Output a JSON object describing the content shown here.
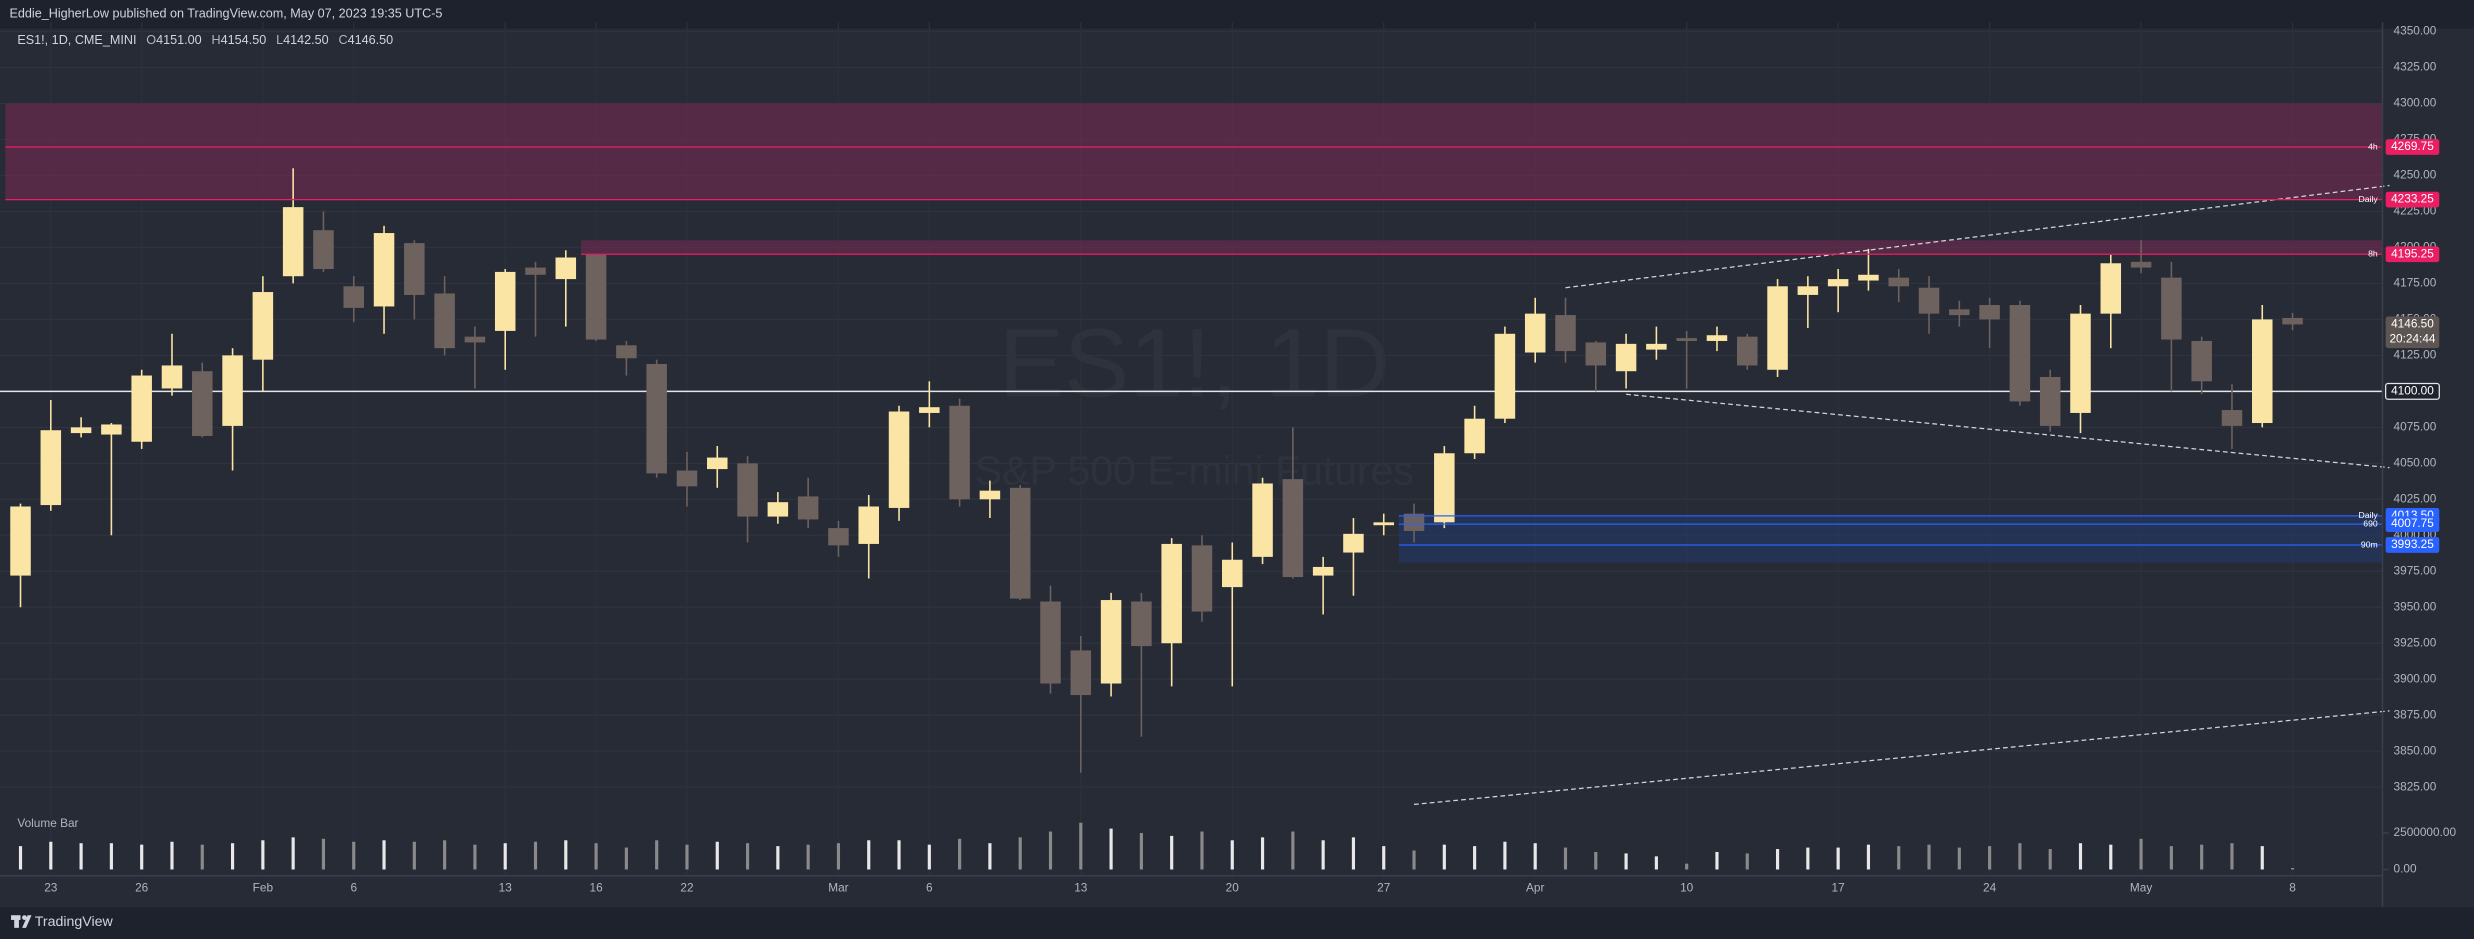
{
  "header": "Eddie_HigherLow published on TradingView.com, May 07, 2023 19:35 UTC-5",
  "footer": "TradingView",
  "chart_data": {
    "type": "candlestick",
    "legend": {
      "symbol": "ES1!, 1D, CME_MINI",
      "fields": [
        {
          "key": "O",
          "value": "4151.00"
        },
        {
          "key": "H",
          "value": "4154.50"
        },
        {
          "key": "L",
          "value": "4142.50"
        },
        {
          "key": "C",
          "value": "4146.50"
        }
      ]
    },
    "watermark": [
      "ES1!, 1D",
      "S&P 500 E-mini Futures"
    ],
    "categories": [
      null,
      "23",
      null,
      null,
      "26",
      null,
      null,
      null,
      "Feb",
      null,
      null,
      "6",
      null,
      null,
      null,
      null,
      "13",
      null,
      null,
      "16",
      null,
      null,
      "22",
      null,
      null,
      null,
      null,
      "Mar",
      null,
      null,
      "6",
      null,
      null,
      null,
      null,
      "13",
      null,
      null,
      null,
      null,
      "20",
      null,
      null,
      null,
      null,
      "27",
      null,
      null,
      null,
      null,
      "Apr",
      null,
      null,
      null,
      null,
      "10",
      null,
      null,
      null,
      null,
      "17",
      null,
      null,
      null,
      null,
      "24",
      null,
      null,
      null,
      null,
      "May",
      null,
      null,
      null,
      null,
      "8"
    ],
    "open": [
      3972,
      4021,
      4071,
      4070,
      4065,
      4102,
      4114,
      4076,
      4122,
      4180,
      4212,
      4173,
      4159,
      4203,
      4168,
      4138,
      4142,
      4186,
      4178,
      4195,
      4132,
      4119,
      4045,
      4046,
      4050,
      4013,
      4027,
      4005,
      3994,
      4019,
      4085,
      4090,
      4025,
      4033,
      3954,
      3920,
      3897,
      3954,
      3925,
      3993,
      3964,
      3985,
      4039,
      3972,
      3988,
      4007,
      4015,
      4009,
      4057,
      4081,
      4127,
      4153,
      4134,
      4114,
      4129,
      4137,
      4135,
      4138,
      4115,
      4167,
      4173,
      4177,
      4179,
      4172,
      4157,
      4160,
      4160,
      4110,
      4085,
      4154,
      4190,
      4179,
      4135,
      4087,
      4078,
      4151
    ],
    "high": [
      4022,
      4094,
      4082,
      4078,
      4115,
      4140,
      4120,
      4130,
      4180,
      4255,
      4225,
      4180,
      4215,
      4205,
      4180,
      4145,
      4185,
      4190,
      4198,
      4195,
      4135,
      4122,
      4058,
      4062,
      4055,
      4030,
      4040,
      4010,
      4028,
      4090,
      4107,
      4095,
      4038,
      4035,
      3965,
      3930,
      3960,
      3960,
      3998,
      4000,
      3995,
      4040,
      4075,
      3985,
      4012,
      4015,
      4022,
      4062,
      4090,
      4145,
      4165,
      4165,
      4135,
      4140,
      4145,
      4142,
      4145,
      4140,
      4178,
      4180,
      4185,
      4199,
      4185,
      4180,
      4163,
      4165,
      4163,
      4115,
      4160,
      4195,
      4205,
      4190,
      4138,
      4105,
      4160,
      4154.5
    ],
    "low": [
      3950,
      4017,
      4068,
      4000,
      4060,
      4097,
      4068,
      4045,
      4100,
      4175,
      4183,
      4148,
      4140,
      4150,
      4125,
      4102,
      4115,
      4138,
      4145,
      4135,
      4111,
      4040,
      4020,
      4033,
      3995,
      4008,
      4005,
      3985,
      3970,
      4010,
      4075,
      4020,
      4012,
      3955,
      3890,
      3835,
      3888,
      3860,
      3895,
      3940,
      3895,
      3980,
      3970,
      3945,
      3958,
      4000,
      3995,
      4005,
      4053,
      4078,
      4120,
      4120,
      4100,
      4102,
      4122,
      4102,
      4128,
      4115,
      4110,
      4144,
      4155,
      4170,
      4162,
      4140,
      4145,
      4130,
      4090,
      4072,
      4071,
      4130,
      4182,
      4100,
      4098,
      4060,
      4075,
      4142.5
    ],
    "close": [
      4020,
      4073,
      4075,
      4077,
      4111,
      4118,
      4069,
      4125,
      4169,
      4228,
      4185,
      4158,
      4210,
      4167,
      4130,
      4134,
      4183,
      4181,
      4193,
      4136,
      4123,
      4043,
      4034,
      4054,
      4013,
      4023,
      4011,
      3993,
      4020,
      4086,
      4089,
      4025,
      4031,
      3956,
      3897,
      3889,
      3955,
      3923,
      3994,
      3947,
      3983,
      4036,
      3971,
      3978,
      4001,
      4009,
      4003,
      4057,
      4081,
      4140,
      4154,
      4128,
      4118,
      4133,
      4133,
      4135,
      4139,
      4118,
      4173,
      4173,
      4178,
      4181,
      4173,
      4154,
      4153,
      4150,
      4093,
      4076,
      4154,
      4189,
      4186,
      4136,
      4107,
      4076,
      4150,
      4146.5
    ],
    "up_color": "#fbe5a4",
    "down_color": "#6d625e",
    "ylim": [
      3812.75,
      4356.5
    ],
    "yticks": [
      {
        "value": 3825,
        "label": "3825.00"
      },
      {
        "value": 3850,
        "label": "3850.00"
      },
      {
        "value": 3875,
        "label": "3875.00"
      },
      {
        "value": 3900,
        "label": "3900.00"
      },
      {
        "value": 3925,
        "label": "3925.00"
      },
      {
        "value": 3950,
        "label": "3950.00"
      },
      {
        "value": 3975,
        "label": "3975.00"
      },
      {
        "value": 4000,
        "label": "4000.00"
      },
      {
        "value": 4025,
        "label": "4025.00"
      },
      {
        "value": 4050,
        "label": "4050.00"
      },
      {
        "value": 4075,
        "label": "4075.00"
      },
      {
        "value": 4100,
        "label": "4100.00"
      },
      {
        "value": 4125,
        "label": "4125.00"
      },
      {
        "value": 4150,
        "label": "4150.00"
      },
      {
        "value": 4175,
        "label": "4175.00"
      },
      {
        "value": 4200,
        "label": "4200.00"
      },
      {
        "value": 4225,
        "label": "4225.00"
      },
      {
        "value": 4250,
        "label": "4250.00"
      },
      {
        "value": 4275,
        "label": "4275.00"
      },
      {
        "value": 4300,
        "label": "4300.00"
      },
      {
        "value": 4325,
        "label": "4325.00"
      },
      {
        "value": 4350,
        "label": "4350.00"
      }
    ],
    "grid": true,
    "volume": {
      "title": "Volume Bar",
      "values": [
        1600000,
        1900000,
        1800000,
        1800000,
        1700000,
        1900000,
        1700000,
        1800000,
        2000000,
        2200000,
        2100000,
        1900000,
        2000000,
        1900000,
        2000000,
        1700000,
        1800000,
        1900000,
        2000000,
        1800000,
        1500000,
        2000000,
        1700000,
        1900000,
        1800000,
        1600000,
        1700000,
        1800000,
        2000000,
        2000000,
        1700000,
        2100000,
        1800000,
        2200000,
        2600000,
        3200000,
        2800000,
        2500000,
        2300000,
        2600000,
        2000000,
        2200000,
        2600000,
        2000000,
        2200000,
        1600000,
        1300000,
        1700000,
        1600000,
        1900000,
        1800000,
        1500000,
        1200000,
        1100000,
        900000,
        400000,
        1200000,
        1100000,
        1400000,
        1500000,
        1500000,
        1700000,
        1600000,
        1700000,
        1500000,
        1600000,
        1800000,
        1400000,
        1800000,
        1700000,
        2100000,
        1600000,
        1700000,
        1800000,
        1600000,
        100000
      ],
      "ylim": [
        0,
        4000000
      ],
      "yticks": [
        {
          "value": 0,
          "label": "0.00"
        },
        {
          "value": 2500000,
          "label": "2500000.00"
        }
      ],
      "up_color": "#e8e8e8",
      "down_color": "#8a8a8a"
    },
    "zones": [
      {
        "low": 4233.25,
        "high": 4300,
        "start_index": 0,
        "color": "#7a2a55"
      },
      {
        "low": 4195.25,
        "high": 4205,
        "start_index": 19,
        "color": "#7a2a55"
      },
      {
        "low": 3981,
        "high": 4013.5,
        "start_index": 46,
        "color": "#233a6e"
      }
    ],
    "levels": [
      {
        "label": "4h",
        "value": 4269.75,
        "value_label": "4269.75",
        "start_index": 0,
        "color": "#e91e63"
      },
      {
        "label": "Daily",
        "value": 4233.25,
        "value_label": "4233.25",
        "start_index": 0,
        "color": "#e91e63"
      },
      {
        "label": "8h",
        "value": 4195.25,
        "value_label": "4195.25",
        "start_index": 19,
        "color": "#e91e63"
      },
      {
        "label": "Daily",
        "value": 4013.5,
        "value_label": "4013.50",
        "start_index": 46,
        "color": "#2962ff"
      },
      {
        "label": "690",
        "value": 4007.75,
        "value_label": "4007.75",
        "start_index": 46,
        "color": "#2962ff"
      },
      {
        "label": "90m",
        "value": 3993.25,
        "value_label": "3993.25",
        "start_index": 46,
        "color": "#2962ff"
      }
    ],
    "hline": {
      "value": 4100,
      "value_label": "4100.00",
      "color": "#e6e6e6"
    },
    "last": {
      "value": 4146.5,
      "value_label": "4146.50",
      "countdown": "20:24:44",
      "color": "#5d5552"
    },
    "trendlines": [
      {
        "x": [
          51,
          78.2
        ],
        "y": [
          4172,
          4243
        ]
      },
      {
        "x": [
          53,
          78.2
        ],
        "y": [
          4098,
          4047
        ]
      },
      {
        "x": [
          46,
          78.2
        ],
        "y": [
          3813,
          3878
        ]
      }
    ]
  }
}
